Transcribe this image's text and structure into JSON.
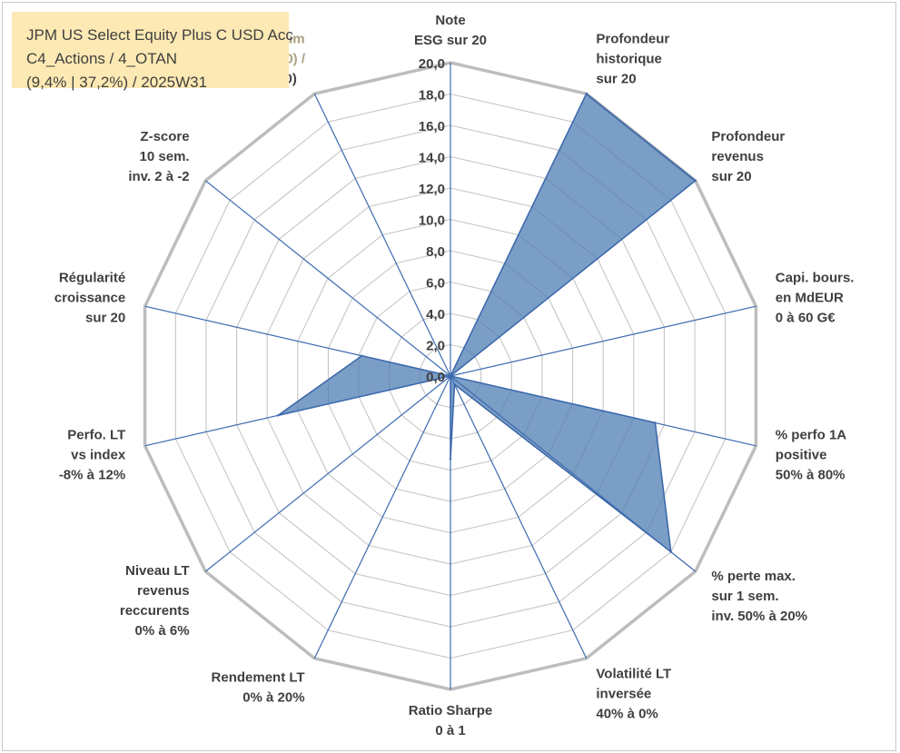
{
  "title_box": {
    "lines": [
      "JPM US Select Equity Plus C USD Acc",
      "C4_Actions / 4_OTAN",
      "(9,4% | 37,2%) / 2025W31"
    ]
  },
  "chart_data": {
    "type": "radar",
    "title": "JPM US Select Equity Plus C USD Acc",
    "r_min": 0,
    "r_max": 20,
    "r_step": 2,
    "tick_labels": [
      "0,0",
      "2,0",
      "4,0",
      "6,0",
      "8,0",
      "10,0",
      "12,0",
      "14,0",
      "16,0",
      "18,0",
      "20,0"
    ],
    "categories": [
      "Note ESG sur 20",
      "Profondeur historique sur 20",
      "Profondeur revenus sur 20",
      "Capi. bours. en MdEUR 0 à 60 G€",
      "% perfo 1A positive 50% à 80%",
      "% perte max. sur 1 sem. inv. 50% à 20%",
      "Volatilité LT inversée 40% à 0%",
      "Ratio Sharpe 0 à 1",
      "Rendement LT 0% à 20%",
      "Niveau LT revenus reccurents 0% à 6%",
      "Perfo. LT vs index -8% à 12%",
      "Régularité croissance sur 20",
      "Z-score 10 sem. inv. 2 à -2",
      "Momentum Achat (20) / Vente (0)"
    ],
    "category_lines": [
      [
        "Note",
        "ESG sur 20"
      ],
      [
        "Profondeur",
        "historique",
        "sur 20"
      ],
      [
        "Profondeur",
        "revenus",
        "sur 20"
      ],
      [
        "Capi. bours.",
        "en MdEUR",
        "0 à 60 G€"
      ],
      [
        "% perfo 1A",
        "positive",
        "50% à 80%"
      ],
      [
        "% perte max.",
        "sur 1 sem.",
        "inv. 50% à 20%"
      ],
      [
        "Volatilité LT",
        "inversée",
        "40% à 0%"
      ],
      [
        "Ratio Sharpe",
        "0 à 1"
      ],
      [
        "Rendement LT",
        "0% à 20%"
      ],
      [
        "Niveau LT",
        "revenus",
        "reccurents",
        "0% à 6%"
      ],
      [
        "Perfo. LT",
        "vs index",
        "-8% à 12%"
      ],
      [
        "Régularité",
        "croissance",
        "sur 20"
      ],
      [
        "Z-score",
        "10 sem.",
        "inv. 2 à -2"
      ],
      [
        "Momentum",
        "Achat (20) /",
        "Vente (0)"
      ]
    ],
    "series": [
      {
        "values": [
          0,
          20,
          20,
          0,
          13.4,
          18.0,
          0.6,
          5.3,
          0,
          0,
          11.3,
          5.8,
          0,
          0.1
        ],
        "color": "#4f7db3"
      }
    ],
    "colors": {
      "fill": "#4f7db3",
      "fill_opacity": 0.75,
      "series_stroke": "#3a66a7",
      "grid": "#c6c6c6",
      "outer_ring": "#bdbdbd",
      "spokes": "#3d6bb0"
    },
    "grid": true,
    "legend": "none"
  }
}
